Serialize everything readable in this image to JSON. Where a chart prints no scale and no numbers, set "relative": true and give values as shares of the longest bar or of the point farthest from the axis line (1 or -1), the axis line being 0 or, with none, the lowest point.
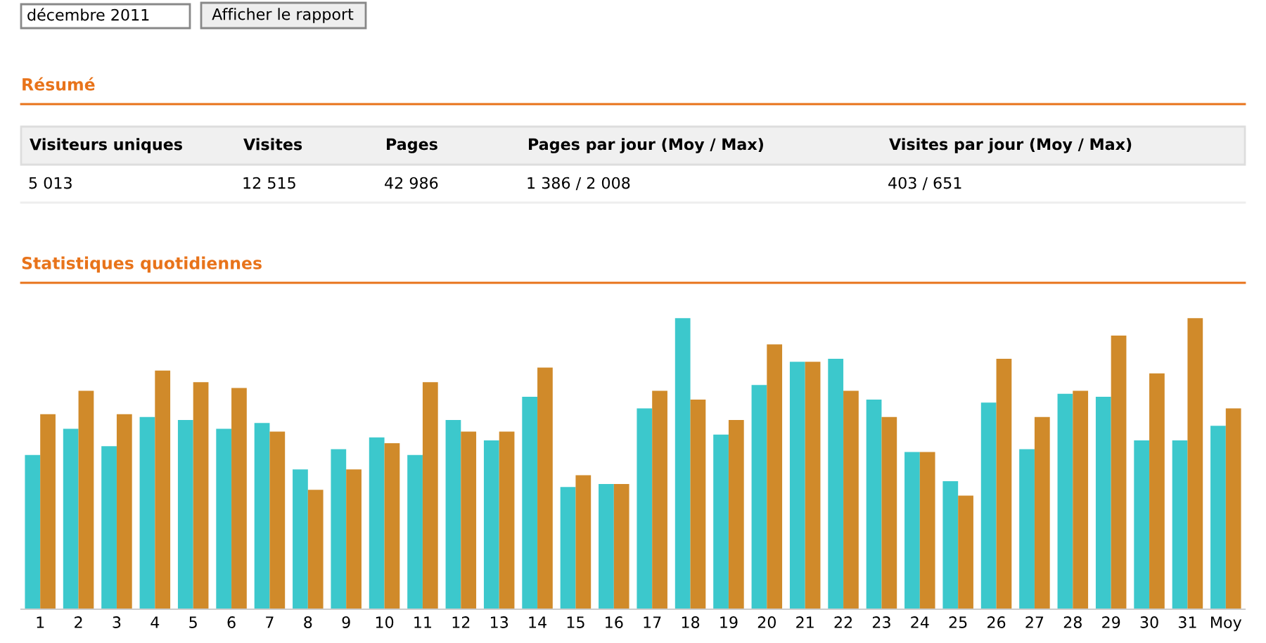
{
  "chart_data": [
    {
      "type": "other",
      "title": "Résumé",
      "annotations": [
        "décembre 2011",
        "Afficher le rapport",
        "Visiteurs uniques",
        "Visites",
        "Pages",
        "Pages par jour (Moy / Max)",
        "Visites par jour (Moy / Max)",
        "5 013",
        "12 515",
        "42 986",
        "1 386 / 2 008",
        "403 / 651"
      ]
    },
    {
      "type": "bar",
      "title": "Statistiques quotidiennes",
      "relative": true,
      "categories": [
        "1",
        "2",
        "3",
        "4",
        "5",
        "6",
        "7",
        "8",
        "9",
        "10",
        "11",
        "12",
        "13",
        "14",
        "15",
        "16",
        "17",
        "18",
        "19",
        "20",
        "21",
        "22",
        "23",
        "24",
        "25",
        "26",
        "27",
        "28",
        "29",
        "30",
        "31",
        "Moy"
      ],
      "series": [
        {
          "color": "#3cc8cc",
          "values": [
            0.53,
            0.62,
            0.56,
            0.66,
            0.65,
            0.62,
            0.64,
            0.48,
            0.55,
            0.59,
            0.53,
            0.65,
            0.58,
            0.73,
            0.42,
            0.43,
            0.69,
            1,
            0.6,
            0.77,
            0.85,
            0.86,
            0.72,
            0.54,
            0.44,
            0.71,
            0.55,
            0.74,
            0.73,
            0.58,
            0.58,
            0.63
          ]
        },
        {
          "color": "#d08a2a",
          "values": [
            0.67,
            0.75,
            0.67,
            0.82,
            0.78,
            0.76,
            0.61,
            0.41,
            0.48,
            0.57,
            0.78,
            0.61,
            0.61,
            0.83,
            0.46,
            0.43,
            0.75,
            0.72,
            0.65,
            0.91,
            0.85,
            0.75,
            0.66,
            0.54,
            0.39,
            0.86,
            0.66,
            0.75,
            0.94,
            0.81,
            1,
            0.69
          ]
        }
      ]
    }
  ]
}
